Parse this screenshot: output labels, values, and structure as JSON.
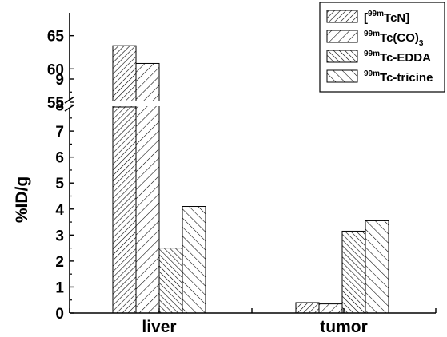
{
  "chart_data": {
    "type": "bar",
    "title": "",
    "xlabel": "",
    "ylabel": "%ID/g",
    "categories": [
      "liver",
      "tumor"
    ],
    "series": [
      {
        "name_sup": "99m",
        "name_pre": "[",
        "name_main": "TcN]",
        "name_sub": "",
        "name_post": "",
        "pattern": "hatch-fwd-dense",
        "values": [
          63.5,
          0.4
        ]
      },
      {
        "name_sup": "99m",
        "name_pre": "",
        "name_main": "Tc(CO)",
        "name_sub": "3",
        "name_post": "",
        "pattern": "hatch-fwd-sparse",
        "values": [
          9.6,
          0.35
        ]
      },
      {
        "name_sup": "99m",
        "name_pre": "",
        "name_main": "Tc-EDDA",
        "name_sub": "",
        "name_post": "",
        "pattern": "hatch-back-dense",
        "values": [
          2.5,
          3.15
        ]
      },
      {
        "name_sup": "99m",
        "name_pre": "",
        "name_main": "Tc-tricine",
        "name_sub": "",
        "name_post": "",
        "pattern": "hatch-back-sparse",
        "values": [
          4.1,
          3.55
        ]
      }
    ],
    "axis_break": {
      "lower_range": [
        0,
        9.8
      ],
      "upper_range": [
        55,
        67
      ]
    },
    "y_ticks_lower": [
      "0",
      "1",
      "2",
      "3",
      "4",
      "5",
      "6",
      "7",
      "8",
      "9"
    ],
    "y_ticks_upper": [
      "55",
      "60",
      "65"
    ],
    "grid": false,
    "legend_position": "top-right"
  }
}
